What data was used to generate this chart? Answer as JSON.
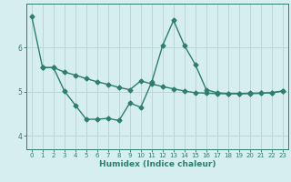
{
  "line1_x": [
    0,
    1,
    2,
    3,
    4,
    5,
    6,
    7,
    8,
    9,
    10,
    11,
    12,
    13,
    14,
    15,
    16,
    17,
    18,
    19,
    20,
    21,
    22,
    23
  ],
  "line1_y": [
    6.72,
    5.55,
    5.55,
    5.45,
    5.38,
    5.3,
    5.23,
    5.17,
    5.1,
    5.05,
    5.25,
    5.18,
    5.12,
    5.07,
    5.02,
    4.98,
    4.97,
    4.96,
    4.96,
    4.96,
    4.97,
    4.97,
    4.98,
    5.02
  ],
  "line2_x": [
    1,
    2,
    3,
    4,
    5,
    6,
    7,
    8,
    9,
    10,
    11,
    12,
    13,
    14,
    15,
    16,
    17,
    18,
    19,
    20,
    21,
    22,
    23
  ],
  "line2_y": [
    5.55,
    5.55,
    5.02,
    4.7,
    4.38,
    4.38,
    4.4,
    4.35,
    4.75,
    4.65,
    5.22,
    6.05,
    6.62,
    6.05,
    5.62,
    5.05,
    4.98,
    4.96,
    4.96,
    4.96,
    4.97,
    4.98,
    5.02
  ],
  "color": "#2e7d6e",
  "bg_color": "#d6eeee",
  "grid_color": "#b8d8d8",
  "xlabel": "Humidex (Indice chaleur)",
  "ylim": [
    3.7,
    7.0
  ],
  "xlim": [
    -0.5,
    23.5
  ],
  "yticks": [
    4,
    5,
    6
  ],
  "xticks": [
    0,
    1,
    2,
    3,
    4,
    5,
    6,
    7,
    8,
    9,
    10,
    11,
    12,
    13,
    14,
    15,
    16,
    17,
    18,
    19,
    20,
    21,
    22,
    23
  ],
  "marker": "D",
  "markersize": 2.5,
  "linewidth": 1.0,
  "tick_fontsize": 5.5,
  "xlabel_fontsize": 6.5
}
